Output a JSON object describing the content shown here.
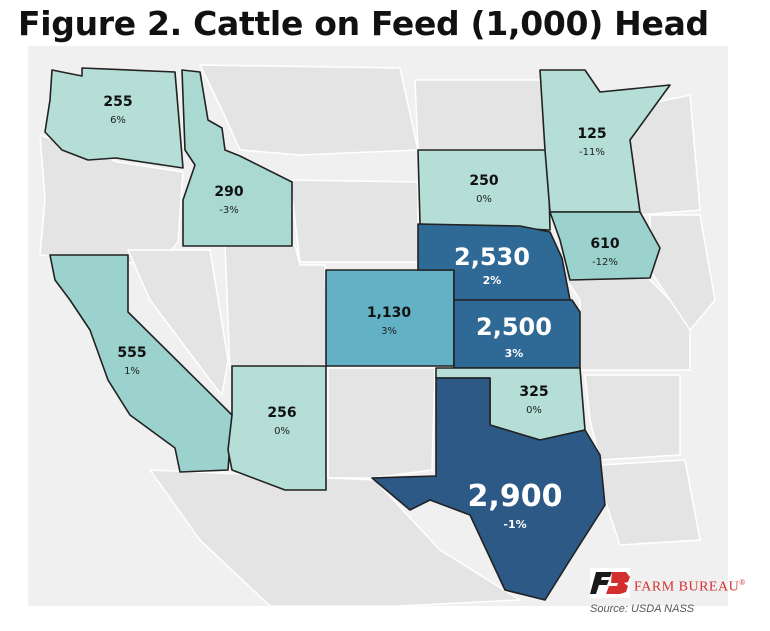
{
  "title": "Figure 2. Cattle on Feed (1,000) Head",
  "source": "Source:  USDA NASS",
  "logo": {
    "text": "FARM BUREAU",
    "mark": "®",
    "color": "#d32f2f"
  },
  "colors": {
    "background_land": "#e4e4e4",
    "lightest": "#b5ded6",
    "light": "#8ecfcc",
    "medium": "#62b1c4",
    "dark": "#2f6a96",
    "darkest": "#2c5985"
  },
  "states": {
    "washington": {
      "value": "255",
      "change": "6%"
    },
    "idaho": {
      "value": "290",
      "change": "-3%"
    },
    "california": {
      "value": "555",
      "change": "1%"
    },
    "arizona": {
      "value": "256",
      "change": "0%"
    },
    "colorado": {
      "value": "1,130",
      "change": "3%"
    },
    "south_dakota": {
      "value": "250",
      "change": "0%"
    },
    "minnesota": {
      "value": "125",
      "change": "-11%"
    },
    "iowa": {
      "value": "610",
      "change": "-12%"
    },
    "nebraska": {
      "value": "2,530",
      "change": "2%"
    },
    "kansas": {
      "value": "2,500",
      "change": "3%"
    },
    "oklahoma": {
      "value": "325",
      "change": "0%"
    },
    "texas": {
      "value": "2,900",
      "change": "-1%"
    }
  }
}
